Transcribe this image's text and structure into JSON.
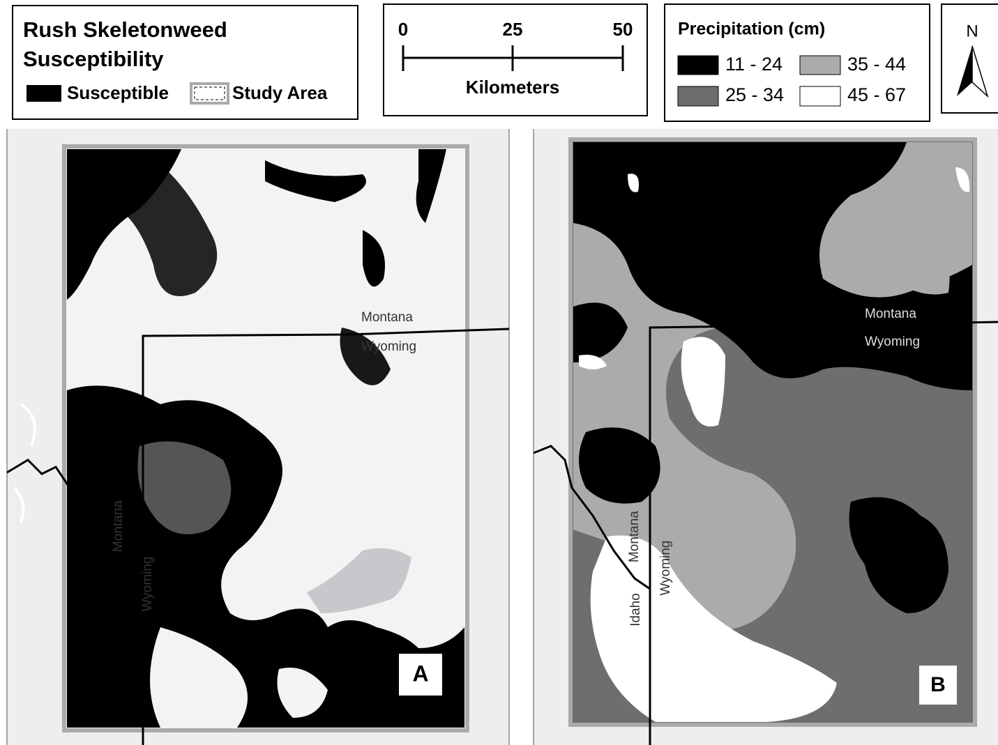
{
  "legend_susceptibility": {
    "title_lines": [
      "Rush Skeletonweed",
      "Susceptibility"
    ],
    "items": [
      "Susceptible",
      "Study Area"
    ]
  },
  "scale_bar": {
    "ticks": [
      "0",
      "25",
      "50"
    ],
    "unit": "Kilometers"
  },
  "legend_precipitation": {
    "title": "Precipitation (cm)",
    "classes": [
      {
        "label": "11 - 24",
        "color": "#000000"
      },
      {
        "label": "25 - 34",
        "color": "#6e6e6e"
      },
      {
        "label": "35 - 44",
        "color": "#ababab"
      },
      {
        "label": "45 - 67",
        "color": "#ffffff"
      }
    ]
  },
  "north_arrow": {
    "label": "N"
  },
  "panels": [
    {
      "label": "A",
      "place_labels": [
        "Montana",
        "Wyoming",
        "Montana",
        "Wyoming"
      ]
    },
    {
      "label": "B",
      "place_labels": [
        "Montana",
        "Wyoming",
        "Montana",
        "Wyoming",
        "Idaho"
      ]
    }
  ]
}
